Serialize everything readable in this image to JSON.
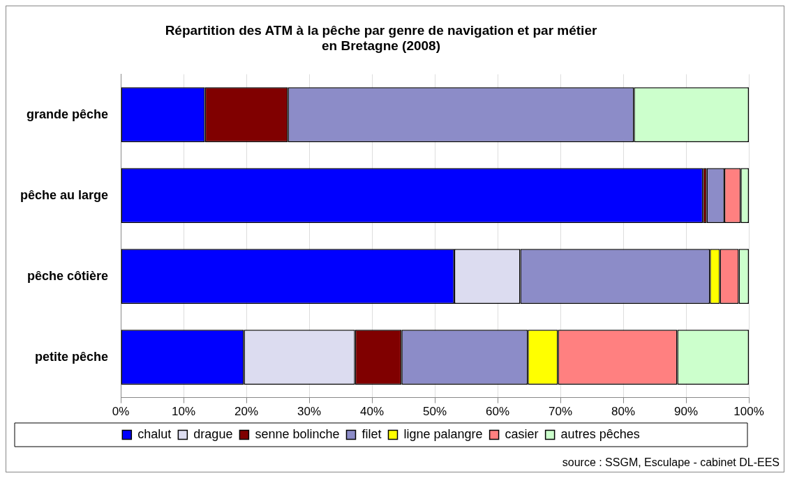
{
  "chart_data": {
    "type": "bar",
    "orientation": "horizontal",
    "stacked": true,
    "title": "Répartition des ATM à la pêche par genre de navigation et par métier\nen Bretagne (2008)",
    "categories": [
      "grande pêche",
      "pêche au large",
      "pêche côtière",
      "petite pêche"
    ],
    "series": [
      {
        "name": "chalut",
        "color": "#0000ff",
        "values": [
          13.4,
          92.7,
          53.1,
          19.6
        ]
      },
      {
        "name": "drague",
        "color": "#dcdcf0",
        "values": [
          0,
          0,
          10.5,
          17.7
        ]
      },
      {
        "name": "senne bolinche",
        "color": "#800000",
        "values": [
          13.2,
          0.6,
          0,
          7.4
        ]
      },
      {
        "name": "filet",
        "color": "#8c8cc8",
        "values": [
          55.1,
          2.8,
          30.2,
          20.1
        ]
      },
      {
        "name": "ligne palangre",
        "color": "#ffff00",
        "values": [
          0,
          0,
          1.6,
          4.8
        ]
      },
      {
        "name": "casier",
        "color": "#ff8080",
        "values": [
          0,
          2.6,
          3.0,
          19.0
        ]
      },
      {
        "name": "autres pêches",
        "color": "#ccffcc",
        "values": [
          18.3,
          1.3,
          1.6,
          11.4
        ]
      }
    ],
    "xlim": [
      0,
      100
    ],
    "xticks": [
      {
        "value": 0,
        "label": "0%"
      },
      {
        "value": 10,
        "label": "10%"
      },
      {
        "value": 20,
        "label": "20%"
      },
      {
        "value": 30,
        "label": "30%"
      },
      {
        "value": 40,
        "label": "40%"
      },
      {
        "value": 50,
        "label": "50%"
      },
      {
        "value": 60,
        "label": "60%"
      },
      {
        "value": 70,
        "label": "70%"
      },
      {
        "value": 80,
        "label": "80%"
      },
      {
        "value": 90,
        "label": "90%"
      },
      {
        "value": 100,
        "label": "100%"
      }
    ],
    "grid": "x",
    "legend": "bottom",
    "annotations": [
      "source : SSGM, Esculape - cabinet DL-EES"
    ]
  }
}
